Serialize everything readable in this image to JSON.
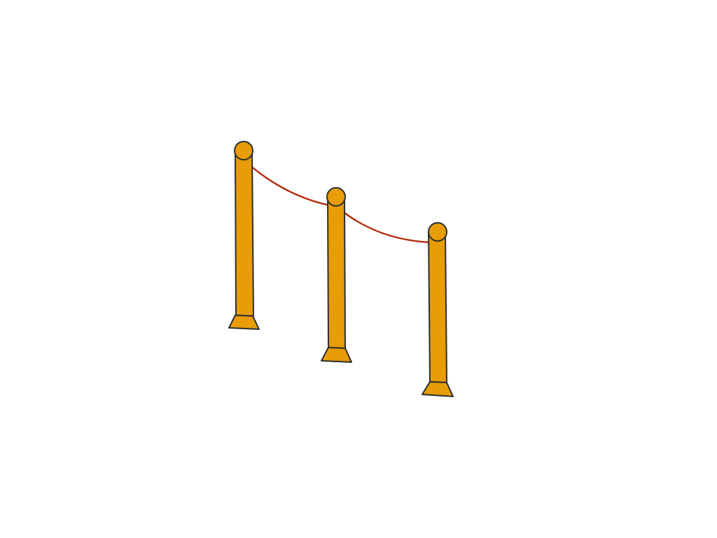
{
  "scene": {
    "subject": "stanchion-barrier",
    "post_count": 3,
    "rope_count": 2
  },
  "colors": {
    "background": "#ffffff",
    "post_fill": "#e89c05",
    "outline": "#2a2f33",
    "rope": "#b52b0a"
  },
  "icons": {
    "post": "stanchion-post-icon",
    "rope": "barrier-rope-icon"
  }
}
